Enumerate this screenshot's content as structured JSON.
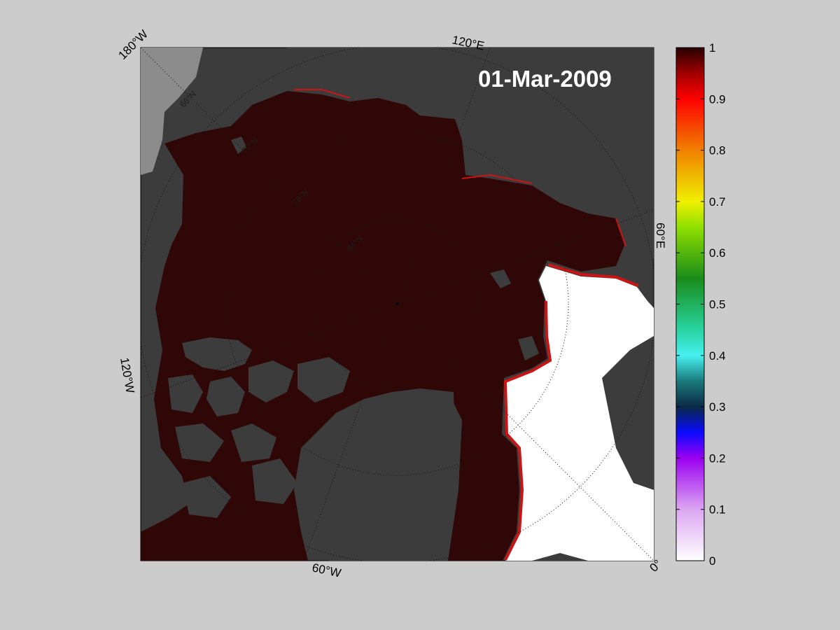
{
  "map": {
    "date": "01-Mar-2009",
    "longitude_labels": {
      "w180": "180°W",
      "e120": "120°E",
      "e60": "60°E",
      "w120": "120°W",
      "w60": "60°W",
      "zero": "0°"
    },
    "latitude_labels": [
      "66°N",
      "72°N",
      "78°N",
      "84°N"
    ],
    "colors": {
      "figure_bg": "#cccccc",
      "ocean_bg": "#ffffff",
      "land": "#3c3c3c",
      "land_light": "#8c8c8c",
      "ice": "#300707",
      "ice_edge": "#cc1414"
    }
  },
  "colorbar": {
    "ticks": [
      "0",
      "0.1",
      "0.2",
      "0.3",
      "0.4",
      "0.5",
      "0.6",
      "0.7",
      "0.8",
      "0.9",
      "1"
    ],
    "range": [
      0,
      1
    ]
  }
}
